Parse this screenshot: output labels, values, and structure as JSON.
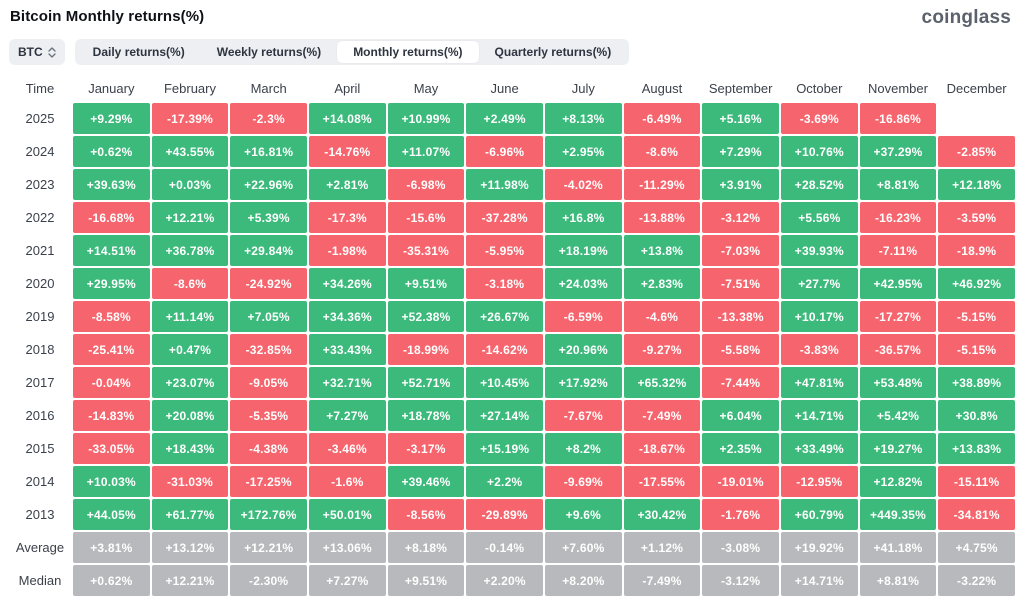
{
  "page": {
    "title": "Bitcoin Monthly returns(%)",
    "logo": "coinglass"
  },
  "controls": {
    "symbol_button": {
      "label": "BTC"
    },
    "tabs": [
      {
        "label": "Daily returns(%)",
        "active": false
      },
      {
        "label": "Weekly returns(%)",
        "active": false
      },
      {
        "label": "Monthly returns(%)",
        "active": true
      },
      {
        "label": "Quarterly returns(%)",
        "active": false
      }
    ]
  },
  "colors": {
    "positive": "#3cba7c",
    "negative": "#f6656e",
    "neutral": "#b7b9bc"
  },
  "chart_data": {
    "type": "heatmap",
    "title": "Bitcoin Monthly returns(%)",
    "columns": [
      "Time",
      "January",
      "February",
      "March",
      "April",
      "May",
      "June",
      "July",
      "August",
      "September",
      "October",
      "November",
      "December"
    ],
    "rows": [
      {
        "label": "2025",
        "type": "year",
        "values": [
          "+9.29%",
          "-17.39%",
          "-2.3%",
          "+14.08%",
          "+10.99%",
          "+2.49%",
          "+8.13%",
          "-6.49%",
          "+5.16%",
          "-3.69%",
          "-16.86%",
          null
        ]
      },
      {
        "label": "2024",
        "type": "year",
        "values": [
          "+0.62%",
          "+43.55%",
          "+16.81%",
          "-14.76%",
          "+11.07%",
          "-6.96%",
          "+2.95%",
          "-8.6%",
          "+7.29%",
          "+10.76%",
          "+37.29%",
          "-2.85%"
        ]
      },
      {
        "label": "2023",
        "type": "year",
        "values": [
          "+39.63%",
          "+0.03%",
          "+22.96%",
          "+2.81%",
          "-6.98%",
          "+11.98%",
          "-4.02%",
          "-11.29%",
          "+3.91%",
          "+28.52%",
          "+8.81%",
          "+12.18%"
        ]
      },
      {
        "label": "2022",
        "type": "year",
        "values": [
          "-16.68%",
          "+12.21%",
          "+5.39%",
          "-17.3%",
          "-15.6%",
          "-37.28%",
          "+16.8%",
          "-13.88%",
          "-3.12%",
          "+5.56%",
          "-16.23%",
          "-3.59%"
        ]
      },
      {
        "label": "2021",
        "type": "year",
        "values": [
          "+14.51%",
          "+36.78%",
          "+29.84%",
          "-1.98%",
          "-35.31%",
          "-5.95%",
          "+18.19%",
          "+13.8%",
          "-7.03%",
          "+39.93%",
          "-7.11%",
          "-18.9%"
        ]
      },
      {
        "label": "2020",
        "type": "year",
        "values": [
          "+29.95%",
          "-8.6%",
          "-24.92%",
          "+34.26%",
          "+9.51%",
          "-3.18%",
          "+24.03%",
          "+2.83%",
          "-7.51%",
          "+27.7%",
          "+42.95%",
          "+46.92%"
        ]
      },
      {
        "label": "2019",
        "type": "year",
        "values": [
          "-8.58%",
          "+11.14%",
          "+7.05%",
          "+34.36%",
          "+52.38%",
          "+26.67%",
          "-6.59%",
          "-4.6%",
          "-13.38%",
          "+10.17%",
          "-17.27%",
          "-5.15%"
        ]
      },
      {
        "label": "2018",
        "type": "year",
        "values": [
          "-25.41%",
          "+0.47%",
          "-32.85%",
          "+33.43%",
          "-18.99%",
          "-14.62%",
          "+20.96%",
          "-9.27%",
          "-5.58%",
          "-3.83%",
          "-36.57%",
          "-5.15%"
        ]
      },
      {
        "label": "2017",
        "type": "year",
        "values": [
          "-0.04%",
          "+23.07%",
          "-9.05%",
          "+32.71%",
          "+52.71%",
          "+10.45%",
          "+17.92%",
          "+65.32%",
          "-7.44%",
          "+47.81%",
          "+53.48%",
          "+38.89%"
        ]
      },
      {
        "label": "2016",
        "type": "year",
        "values": [
          "-14.83%",
          "+20.08%",
          "-5.35%",
          "+7.27%",
          "+18.78%",
          "+27.14%",
          "-7.67%",
          "-7.49%",
          "+6.04%",
          "+14.71%",
          "+5.42%",
          "+30.8%"
        ]
      },
      {
        "label": "2015",
        "type": "year",
        "values": [
          "-33.05%",
          "+18.43%",
          "-4.38%",
          "-3.46%",
          "-3.17%",
          "+15.19%",
          "+8.2%",
          "-18.67%",
          "+2.35%",
          "+33.49%",
          "+19.27%",
          "+13.83%"
        ]
      },
      {
        "label": "2014",
        "type": "year",
        "values": [
          "+10.03%",
          "-31.03%",
          "-17.25%",
          "-1.6%",
          "+39.46%",
          "+2.2%",
          "-9.69%",
          "-17.55%",
          "-19.01%",
          "-12.95%",
          "+12.82%",
          "-15.11%"
        ]
      },
      {
        "label": "2013",
        "type": "year",
        "values": [
          "+44.05%",
          "+61.77%",
          "+172.76%",
          "+50.01%",
          "-8.56%",
          "-29.89%",
          "+9.6%",
          "+30.42%",
          "-1.76%",
          "+60.79%",
          "+449.35%",
          "-34.81%"
        ]
      },
      {
        "label": "Average",
        "type": "stat",
        "values": [
          "+3.81%",
          "+13.12%",
          "+12.21%",
          "+13.06%",
          "+8.18%",
          "-0.14%",
          "+7.60%",
          "+1.12%",
          "-3.08%",
          "+19.92%",
          "+41.18%",
          "+4.75%"
        ]
      },
      {
        "label": "Median",
        "type": "stat",
        "values": [
          "+0.62%",
          "+12.21%",
          "-2.30%",
          "+7.27%",
          "+9.51%",
          "+2.20%",
          "+8.20%",
          "-7.49%",
          "-3.12%",
          "+14.71%",
          "+8.81%",
          "-3.22%"
        ]
      }
    ]
  }
}
